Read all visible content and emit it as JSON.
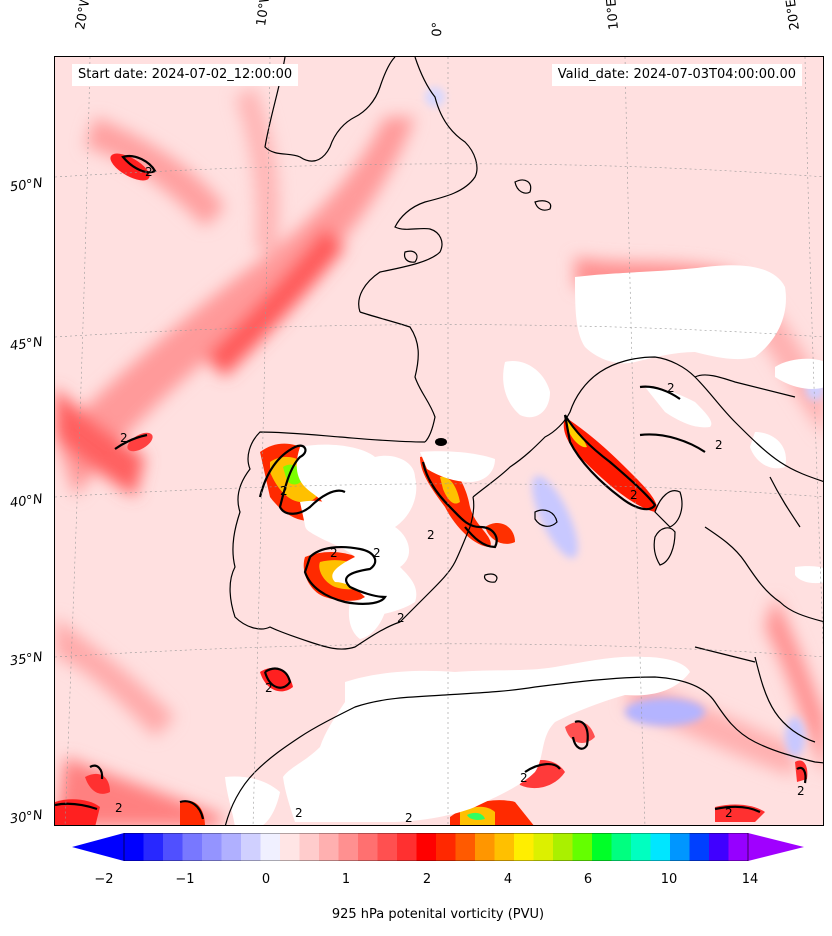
{
  "header": {
    "start_date": "Start date: 2024-07-02_12:00:00",
    "valid_date": "Valid_date: 2024-07-03T04:00:00.00"
  },
  "map": {
    "lon_labels": [
      "20°W",
      "10°W",
      "0°",
      "10°E",
      "20°E"
    ],
    "lat_labels": [
      "50°N",
      "45°N",
      "40°N",
      "35°N",
      "30°N"
    ],
    "contour_label": "2",
    "background_color": "#ffe5e5",
    "coastline_color": "#000000"
  },
  "colorbar": {
    "label": "925 hPa potenital vorticity (PVU)",
    "ticks": [
      "−2",
      "−1",
      "0",
      "1",
      "2",
      "4",
      "6",
      "10",
      "14"
    ],
    "colors": [
      "#0000ff",
      "#2828ff",
      "#5050ff",
      "#7878ff",
      "#9494ff",
      "#b0b0ff",
      "#d0d0ff",
      "#f0f0ff",
      "#ffe5e5",
      "#ffcccc",
      "#ffb0b0",
      "#ff9090",
      "#ff7070",
      "#ff5050",
      "#ff3030",
      "#ff0000",
      "#ff2800",
      "#ff5a00",
      "#ff9600",
      "#ffc000",
      "#ffee00",
      "#dcf000",
      "#aaf000",
      "#64ff00",
      "#00ff28",
      "#00ff80",
      "#00ffc0",
      "#00e6ff",
      "#0096ff",
      "#0040ff",
      "#4000ff",
      "#9600ff"
    ],
    "under_color": "#0000ff",
    "over_color": "#a000ff"
  }
}
